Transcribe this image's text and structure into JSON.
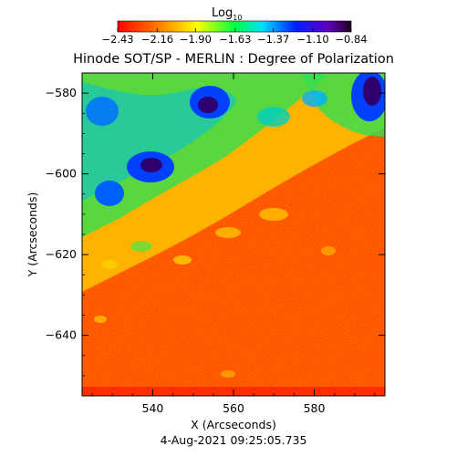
{
  "colorbar": {
    "label": "Log",
    "label_subscript": "10",
    "range": [
      -2.43,
      -0.84
    ],
    "tick_labels": [
      "-2.43",
      "-2.16",
      "-1.90",
      "-1.63",
      "-1.37",
      "-1.10",
      "-0.84"
    ],
    "colormap": "rainbow (red to violet/black)"
  },
  "title": "Hinode SOT/SP - MERLIN : Degree of Polarization",
  "x_axis": {
    "label": "X (Arcseconds)",
    "range": [
      522.5,
      597.5
    ],
    "ticks": [
      540,
      560,
      580
    ],
    "tick_labels": [
      "540",
      "560",
      "580"
    ]
  },
  "y_axis": {
    "label": "Y (Arcseconds)",
    "range": [
      -655,
      -575
    ],
    "ticks": [
      -580,
      -600,
      -620,
      -640
    ],
    "tick_labels": [
      "-580",
      "-600",
      "-620",
      "-640"
    ]
  },
  "timestamp": "4-Aug-2021 09:25:05.735",
  "image_description": {
    "background_level": "orange-red (low polarization)",
    "high_polarization_regions": [
      "upper-left band",
      "upper-right corner"
    ],
    "colors": {
      "low": "#ff3a00",
      "mid": "#ffe000",
      "green": "#30e050",
      "blue": "#0040ff",
      "high": "#300060"
    }
  }
}
